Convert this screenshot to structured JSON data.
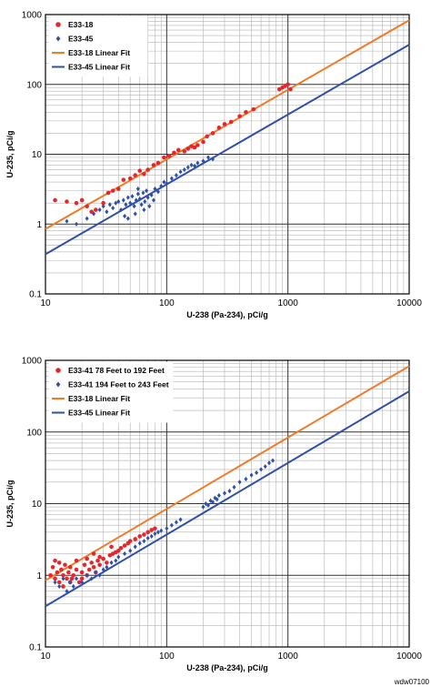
{
  "chart_data": [
    {
      "type": "scatter",
      "xlabel": "U-238 (Pa-234), pCi/g",
      "ylabel": "U-235, pCi/g",
      "xscale": "log",
      "yscale": "log",
      "xlim": [
        10,
        10000
      ],
      "ylim": [
        0.1,
        1000
      ],
      "x_ticks": [
        "10",
        "100",
        "1000",
        "10000"
      ],
      "y_ticks": [
        "1000",
        "100",
        "10",
        "1",
        "0.1"
      ],
      "grid": true,
      "legend_position": "top-left",
      "series": [
        {
          "name": "E33-18",
          "kind": "points",
          "marker": "circle",
          "color": "#e8262a",
          "points": [
            [
              12,
              2.2
            ],
            [
              15,
              2.1
            ],
            [
              18,
              2.0
            ],
            [
              20,
              2.2
            ],
            [
              22,
              1.8
            ],
            [
              24,
              1.5
            ],
            [
              26,
              1.6
            ],
            [
              30,
              2.0
            ],
            [
              33,
              2.8
            ],
            [
              36,
              3.0
            ],
            [
              40,
              3.2
            ],
            [
              44,
              4.3
            ],
            [
              50,
              4.5
            ],
            [
              55,
              5.0
            ],
            [
              60,
              5.8
            ],
            [
              65,
              5.2
            ],
            [
              70,
              6.0
            ],
            [
              78,
              7.0
            ],
            [
              85,
              7.5
            ],
            [
              95,
              9.0
            ],
            [
              105,
              9.5
            ],
            [
              115,
              10.5
            ],
            [
              125,
              11.5
            ],
            [
              140,
              11.0
            ],
            [
              150,
              12.0
            ],
            [
              160,
              13.0
            ],
            [
              170,
              12.5
            ],
            [
              180,
              13.5
            ],
            [
              200,
              15.0
            ],
            [
              215,
              18.0
            ],
            [
              240,
              20.0
            ],
            [
              270,
              24.0
            ],
            [
              300,
              27.0
            ],
            [
              340,
              29.0
            ],
            [
              400,
              35.0
            ],
            [
              450,
              40.0
            ],
            [
              520,
              44.0
            ],
            [
              850,
              85.0
            ],
            [
              900,
              90.0
            ],
            [
              950,
              95.0
            ],
            [
              1000,
              100.0
            ],
            [
              1050,
              85.0
            ]
          ]
        },
        {
          "name": "E33-45",
          "kind": "points",
          "marker": "diamond",
          "color": "#2f4fa8",
          "points": [
            [
              15,
              1.1
            ],
            [
              18,
              1.0
            ],
            [
              22,
              1.2
            ],
            [
              25,
              1.4
            ],
            [
              28,
              1.6
            ],
            [
              30,
              1.8
            ],
            [
              32,
              1.5
            ],
            [
              34,
              1.9
            ],
            [
              36,
              1.7
            ],
            [
              38,
              2.0
            ],
            [
              40,
              2.1
            ],
            [
              42,
              1.6
            ],
            [
              44,
              2.2
            ],
            [
              46,
              1.9
            ],
            [
              48,
              2.4
            ],
            [
              50,
              2.0
            ],
            [
              52,
              2.5
            ],
            [
              54,
              1.8
            ],
            [
              56,
              2.2
            ],
            [
              58,
              2.7
            ],
            [
              60,
              2.3
            ],
            [
              62,
              1.9
            ],
            [
              64,
              2.8
            ],
            [
              66,
              2.1
            ],
            [
              68,
              3.0
            ],
            [
              70,
              2.4
            ],
            [
              72,
              1.8
            ],
            [
              75,
              2.6
            ],
            [
              80,
              3.2
            ],
            [
              85,
              2.9
            ],
            [
              90,
              3.5
            ],
            [
              95,
              4.0
            ],
            [
              100,
              3.8
            ],
            [
              110,
              4.5
            ],
            [
              120,
              5.0
            ],
            [
              130,
              5.6
            ],
            [
              140,
              6.0
            ],
            [
              150,
              6.5
            ],
            [
              160,
              7.0
            ],
            [
              170,
              6.8
            ],
            [
              180,
              7.5
            ],
            [
              200,
              8.0
            ],
            [
              220,
              9.0
            ],
            [
              240,
              8.5
            ],
            [
              45,
              1.3
            ],
            [
              55,
              1.4
            ],
            [
              65,
              1.6
            ],
            [
              58,
              3.2
            ],
            [
              48,
              1.2
            ],
            [
              78,
              2.2
            ]
          ]
        },
        {
          "name": "E33-18 Linear Fit",
          "kind": "line",
          "color": "#f07a28",
          "points": [
            [
              10,
              0.85
            ],
            [
              10000,
              830
            ]
          ]
        },
        {
          "name": "E33-45 Linear Fit",
          "kind": "line",
          "color": "#2f4fa8",
          "points": [
            [
              10,
              0.37
            ],
            [
              10000,
              370
            ]
          ]
        }
      ]
    },
    {
      "type": "scatter",
      "xlabel": "U-238 (Pa-234), pCi/g",
      "ylabel": "U-235, pCi/g",
      "xscale": "log",
      "yscale": "log",
      "xlim": [
        10,
        10000
      ],
      "ylim": [
        0.1,
        1000
      ],
      "x_ticks": [
        "10",
        "100",
        "1000",
        "10000"
      ],
      "y_ticks": [
        "1000",
        "100",
        "10",
        "1",
        "0.1"
      ],
      "grid": true,
      "legend_position": "top-left",
      "series": [
        {
          "name": "E33-41 78 Feet to 192 Feet",
          "kind": "points",
          "marker": "circle",
          "color": "#e8262a",
          "points": [
            [
              11,
              1.0
            ],
            [
              11.5,
              1.3
            ],
            [
              12,
              0.9
            ],
            [
              12.5,
              1.1
            ],
            [
              13,
              0.8
            ],
            [
              13.5,
              1.2
            ],
            [
              14,
              1.0
            ],
            [
              14.5,
              1.4
            ],
            [
              15,
              0.9
            ],
            [
              15.5,
              1.1
            ],
            [
              16,
              1.3
            ],
            [
              16.5,
              0.9
            ],
            [
              17,
              1.0
            ],
            [
              18,
              1.2
            ],
            [
              19,
              0.8
            ],
            [
              20,
              1.1
            ],
            [
              21,
              1.4
            ],
            [
              22,
              1.0
            ],
            [
              23,
              1.2
            ],
            [
              24,
              1.5
            ],
            [
              25,
              1.3
            ],
            [
              26,
              1.1
            ],
            [
              27,
              1.6
            ],
            [
              28,
              1.4
            ],
            [
              30,
              1.7
            ],
            [
              32,
              1.5
            ],
            [
              34,
              1.9
            ],
            [
              36,
              2.0
            ],
            [
              38,
              2.1
            ],
            [
              40,
              2.2
            ],
            [
              42,
              2.4
            ],
            [
              45,
              2.6
            ],
            [
              48,
              2.8
            ],
            [
              50,
              3.0
            ],
            [
              55,
              3.2
            ],
            [
              60,
              3.5
            ],
            [
              65,
              3.7
            ],
            [
              70,
              4.0
            ],
            [
              75,
              4.3
            ],
            [
              80,
              4.5
            ],
            [
              12,
              1.6
            ],
            [
              13,
              1.5
            ],
            [
              14,
              0.7
            ],
            [
              16,
              0.8
            ],
            [
              18,
              1.6
            ],
            [
              20,
              0.9
            ],
            [
              22,
              1.7
            ],
            [
              25,
              2.0
            ],
            [
              28,
              1.8
            ],
            [
              35,
              2.5
            ]
          ]
        },
        {
          "name": "E33-41 194 Feet to 243 Feet",
          "kind": "points",
          "marker": "diamond",
          "color": "#2f4fa8",
          "points": [
            [
              12,
              0.8
            ],
            [
              13,
              0.7
            ],
            [
              14,
              0.9
            ],
            [
              15,
              0.6
            ],
            [
              16,
              0.8
            ],
            [
              17,
              0.7
            ],
            [
              18,
              0.9
            ],
            [
              20,
              0.8
            ],
            [
              22,
              1.0
            ],
            [
              24,
              0.9
            ],
            [
              26,
              1.1
            ],
            [
              28,
              1.0
            ],
            [
              30,
              1.2
            ],
            [
              32,
              1.3
            ],
            [
              35,
              1.5
            ],
            [
              38,
              1.6
            ],
            [
              40,
              1.8
            ],
            [
              45,
              2.0
            ],
            [
              50,
              2.2
            ],
            [
              55,
              2.5
            ],
            [
              60,
              2.8
            ],
            [
              65,
              3.0
            ],
            [
              70,
              3.3
            ],
            [
              75,
              3.5
            ],
            [
              80,
              3.8
            ],
            [
              85,
              4.0
            ],
            [
              90,
              4.2
            ],
            [
              100,
              4.5
            ],
            [
              110,
              5.0
            ],
            [
              120,
              5.5
            ],
            [
              130,
              6.0
            ],
            [
              200,
              9.0
            ],
            [
              210,
              10.0
            ],
            [
              220,
              9.5
            ],
            [
              230,
              11.0
            ],
            [
              240,
              10.5
            ],
            [
              250,
              12.0
            ],
            [
              260,
              11.5
            ],
            [
              270,
              13.0
            ],
            [
              300,
              14.0
            ],
            [
              330,
              15.0
            ],
            [
              360,
              17.0
            ],
            [
              400,
              20.0
            ],
            [
              450,
              22.0
            ],
            [
              500,
              25.0
            ],
            [
              550,
              27.0
            ],
            [
              600,
              30.0
            ],
            [
              650,
              33.0
            ],
            [
              700,
              37.0
            ],
            [
              750,
              40.0
            ]
          ]
        },
        {
          "name": "E33-18 Linear Fit",
          "kind": "line",
          "color": "#f07a28",
          "points": [
            [
              10,
              0.85
            ],
            [
              10000,
              830
            ]
          ]
        },
        {
          "name": "E33-45 Linear Fit",
          "kind": "line",
          "color": "#2f4fa8",
          "points": [
            [
              10,
              0.37
            ],
            [
              10000,
              370
            ]
          ]
        }
      ]
    }
  ],
  "figure_code": "wdw07100"
}
